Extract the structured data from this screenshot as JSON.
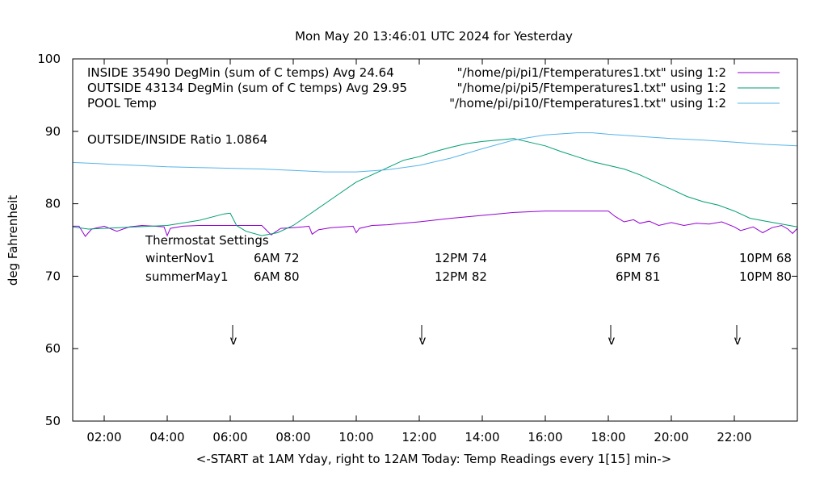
{
  "chart_data": {
    "type": "line",
    "title": "Mon May 20 13:46:01 UTC 2024 for Yesterday",
    "xlabel": "<-START at 1AM Yday, right to 12AM Today:  Temp Readings every 1[15] min->",
    "ylabel": "deg Fahrenheit",
    "ylim": [
      50,
      100
    ],
    "xlim": [
      "01:00",
      "24:00"
    ],
    "yticks": [
      "50",
      "60",
      "70",
      "80",
      "90",
      "100"
    ],
    "xticks": [
      "02:00",
      "04:00",
      "06:00",
      "08:00",
      "10:00",
      "12:00",
      "14:00",
      "16:00",
      "18:00",
      "20:00",
      "22:00"
    ],
    "grid": false,
    "legend_position": "top-right",
    "series": [
      {
        "name": "INSIDE 35490 DegMin (sum of C temps) Avg 24.64",
        "source": "\"/home/pi/pi1/Ftemperatures1.txt\" using 1:2",
        "color": "#9400d3",
        "x": [
          1.0,
          1.2,
          1.4,
          1.6,
          2.0,
          2.4,
          2.8,
          3.2,
          3.6,
          3.9,
          4.0,
          4.1,
          4.5,
          5.0,
          5.5,
          6.0,
          6.5,
          7.0,
          7.3,
          7.6,
          8.0,
          8.3,
          8.5,
          8.6,
          8.8,
          9.2,
          9.6,
          9.9,
          10.0,
          10.1,
          10.5,
          11.0,
          12.0,
          13.0,
          14.0,
          15.0,
          16.0,
          17.0,
          18.0,
          18.2,
          18.5,
          18.8,
          19.0,
          19.3,
          19.6,
          20.0,
          20.4,
          20.8,
          21.2,
          21.6,
          22.0,
          22.2,
          22.6,
          22.9,
          23.2,
          23.5,
          23.7,
          23.85,
          24.0
        ],
        "y": [
          76.9,
          76.9,
          75.5,
          76.5,
          76.9,
          76.2,
          76.8,
          77.0,
          76.9,
          76.8,
          75.6,
          76.6,
          76.9,
          77.0,
          77.0,
          77.0,
          77.0,
          77.0,
          75.7,
          76.6,
          76.7,
          76.8,
          76.9,
          75.8,
          76.4,
          76.7,
          76.8,
          76.9,
          76.0,
          76.6,
          77.0,
          77.1,
          77.5,
          78.0,
          78.4,
          78.8,
          79.0,
          79.0,
          79.0,
          78.3,
          77.5,
          77.8,
          77.3,
          77.6,
          77.0,
          77.4,
          77.0,
          77.3,
          77.2,
          77.5,
          76.8,
          76.3,
          76.8,
          76.0,
          76.7,
          77.0,
          76.5,
          75.9,
          76.6
        ]
      },
      {
        "name": "OUTSIDE 43134 DegMin (sum of C temps) Avg 29.95",
        "source": "\"/home/pi/pi5/Ftemperatures1.txt\" using 1:2",
        "color": "#009e73",
        "x": [
          1.0,
          1.5,
          2.0,
          3.0,
          4.0,
          5.0,
          5.8,
          6.0,
          6.2,
          6.5,
          7.0,
          7.5,
          8.0,
          8.5,
          9.0,
          9.5,
          10.0,
          10.5,
          11.0,
          11.5,
          12.0,
          12.5,
          13.0,
          13.5,
          14.0,
          14.5,
          15.0,
          15.5,
          16.0,
          16.5,
          17.0,
          17.5,
          18.0,
          18.5,
          19.0,
          19.5,
          20.0,
          20.5,
          21.0,
          21.5,
          22.0,
          22.5,
          23.0,
          23.5,
          24.0
        ],
        "y": [
          76.8,
          76.5,
          76.6,
          76.8,
          77.0,
          77.7,
          78.6,
          78.7,
          77.0,
          76.2,
          75.6,
          76.0,
          77.0,
          78.5,
          80.0,
          81.5,
          83.0,
          84.0,
          85.0,
          86.0,
          86.5,
          87.2,
          87.8,
          88.3,
          88.6,
          88.8,
          89.0,
          88.5,
          88.0,
          87.2,
          86.5,
          85.8,
          85.3,
          84.8,
          84.0,
          83.0,
          82.0,
          81.0,
          80.3,
          79.8,
          79.0,
          78.0,
          77.6,
          77.2,
          76.8
        ]
      },
      {
        "name": "POOL Temp",
        "source": "\"/home/pi/pi10/Ftemperatures1.txt\" using 1:2",
        "color": "#56b4e9",
        "x": [
          1.0,
          2.0,
          3.0,
          4.0,
          5.0,
          6.0,
          7.0,
          8.0,
          9.0,
          10.0,
          11.0,
          12.0,
          13.0,
          14.0,
          15.0,
          16.0,
          17.0,
          17.5,
          18.0,
          19.0,
          20.0,
          21.0,
          22.0,
          23.0,
          24.0
        ],
        "y": [
          85.7,
          85.5,
          85.3,
          85.1,
          85.0,
          84.9,
          84.8,
          84.6,
          84.4,
          84.4,
          84.7,
          85.3,
          86.3,
          87.6,
          88.8,
          89.5,
          89.8,
          89.8,
          89.6,
          89.3,
          89.0,
          88.8,
          88.5,
          88.2,
          88.0
        ]
      }
    ],
    "annotations": {
      "ratio": "OUTSIDE/INSIDE Ratio 1.0864",
      "thermostat_title": "Thermostat Settings",
      "rows": [
        {
          "label": "winterNov1",
          "settings": [
            "6AM 72",
            "12PM 74",
            "6PM 76",
            "10PM 68"
          ]
        },
        {
          "label": "summerMay1",
          "settings": [
            "6AM 80",
            "12PM 82",
            "6PM 81",
            "10PM 80"
          ]
        }
      ],
      "marker_hours": [
        6,
        12,
        18,
        22
      ],
      "marker_glyph": "v"
    }
  }
}
